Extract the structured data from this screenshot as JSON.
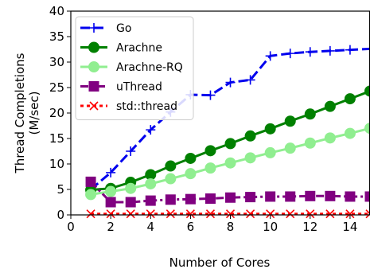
{
  "chart_data": {
    "type": "line",
    "xlabel": "Number of Cores",
    "ylabel_lines": [
      "Thread Completions",
      "(M/sec)"
    ],
    "xlim": [
      0,
      15
    ],
    "ylim": [
      0,
      40
    ],
    "xticks": [
      0,
      2,
      4,
      6,
      8,
      10,
      12,
      14
    ],
    "yticks": [
      0,
      5,
      10,
      15,
      20,
      25,
      30,
      35,
      40
    ],
    "grid": false,
    "legend_position": "top-left",
    "series": [
      {
        "name": "Go",
        "color": "#0000ee",
        "line_style": "dashed",
        "marker": "plus",
        "x": [
          1,
          2,
          3,
          4,
          5,
          6,
          7,
          8,
          9,
          10,
          11,
          12,
          13,
          14,
          15
        ],
        "y": [
          5.0,
          8.3,
          12.5,
          16.7,
          20.2,
          23.6,
          23.5,
          26.0,
          26.5,
          31.2,
          31.7,
          32.0,
          32.2,
          32.4,
          32.6
        ]
      },
      {
        "name": "Arachne",
        "color": "#008000",
        "line_style": "solid",
        "marker": "circle",
        "x": [
          1,
          2,
          3,
          4,
          5,
          6,
          7,
          8,
          9,
          10,
          11,
          12,
          13,
          14,
          15
        ],
        "y": [
          4.9,
          5.2,
          6.4,
          7.9,
          9.6,
          11.1,
          12.6,
          14.0,
          15.5,
          16.9,
          18.4,
          19.8,
          21.3,
          22.8,
          24.3
        ]
      },
      {
        "name": "Arachne-RQ",
        "color": "#90ee90",
        "line_style": "solid",
        "marker": "circle",
        "x": [
          1,
          2,
          3,
          4,
          5,
          6,
          7,
          8,
          9,
          10,
          11,
          12,
          13,
          14,
          15
        ],
        "y": [
          4.0,
          4.6,
          5.2,
          6.1,
          7.1,
          8.1,
          9.2,
          10.2,
          11.2,
          12.2,
          13.1,
          14.1,
          15.1,
          16.0,
          17.0
        ]
      },
      {
        "name": "uThread",
        "color": "#800080",
        "line_style": "dashdot",
        "marker": "square",
        "x": [
          1,
          2,
          3,
          4,
          5,
          6,
          7,
          8,
          9,
          10,
          11,
          12,
          13,
          14,
          15
        ],
        "y": [
          6.5,
          2.5,
          2.5,
          2.8,
          3.0,
          3.1,
          3.2,
          3.4,
          3.5,
          3.6,
          3.6,
          3.7,
          3.7,
          3.6,
          3.6
        ]
      },
      {
        "name": "std::thread",
        "color": "#ff0000",
        "line_style": "dotted",
        "marker": "x",
        "x": [
          1,
          2,
          3,
          4,
          5,
          6,
          7,
          8,
          9,
          10,
          11,
          12,
          13,
          14,
          15
        ],
        "y": [
          0.2,
          0.2,
          0.2,
          0.2,
          0.2,
          0.2,
          0.2,
          0.2,
          0.2,
          0.2,
          0.2,
          0.2,
          0.2,
          0.2,
          0.2
        ]
      }
    ]
  }
}
